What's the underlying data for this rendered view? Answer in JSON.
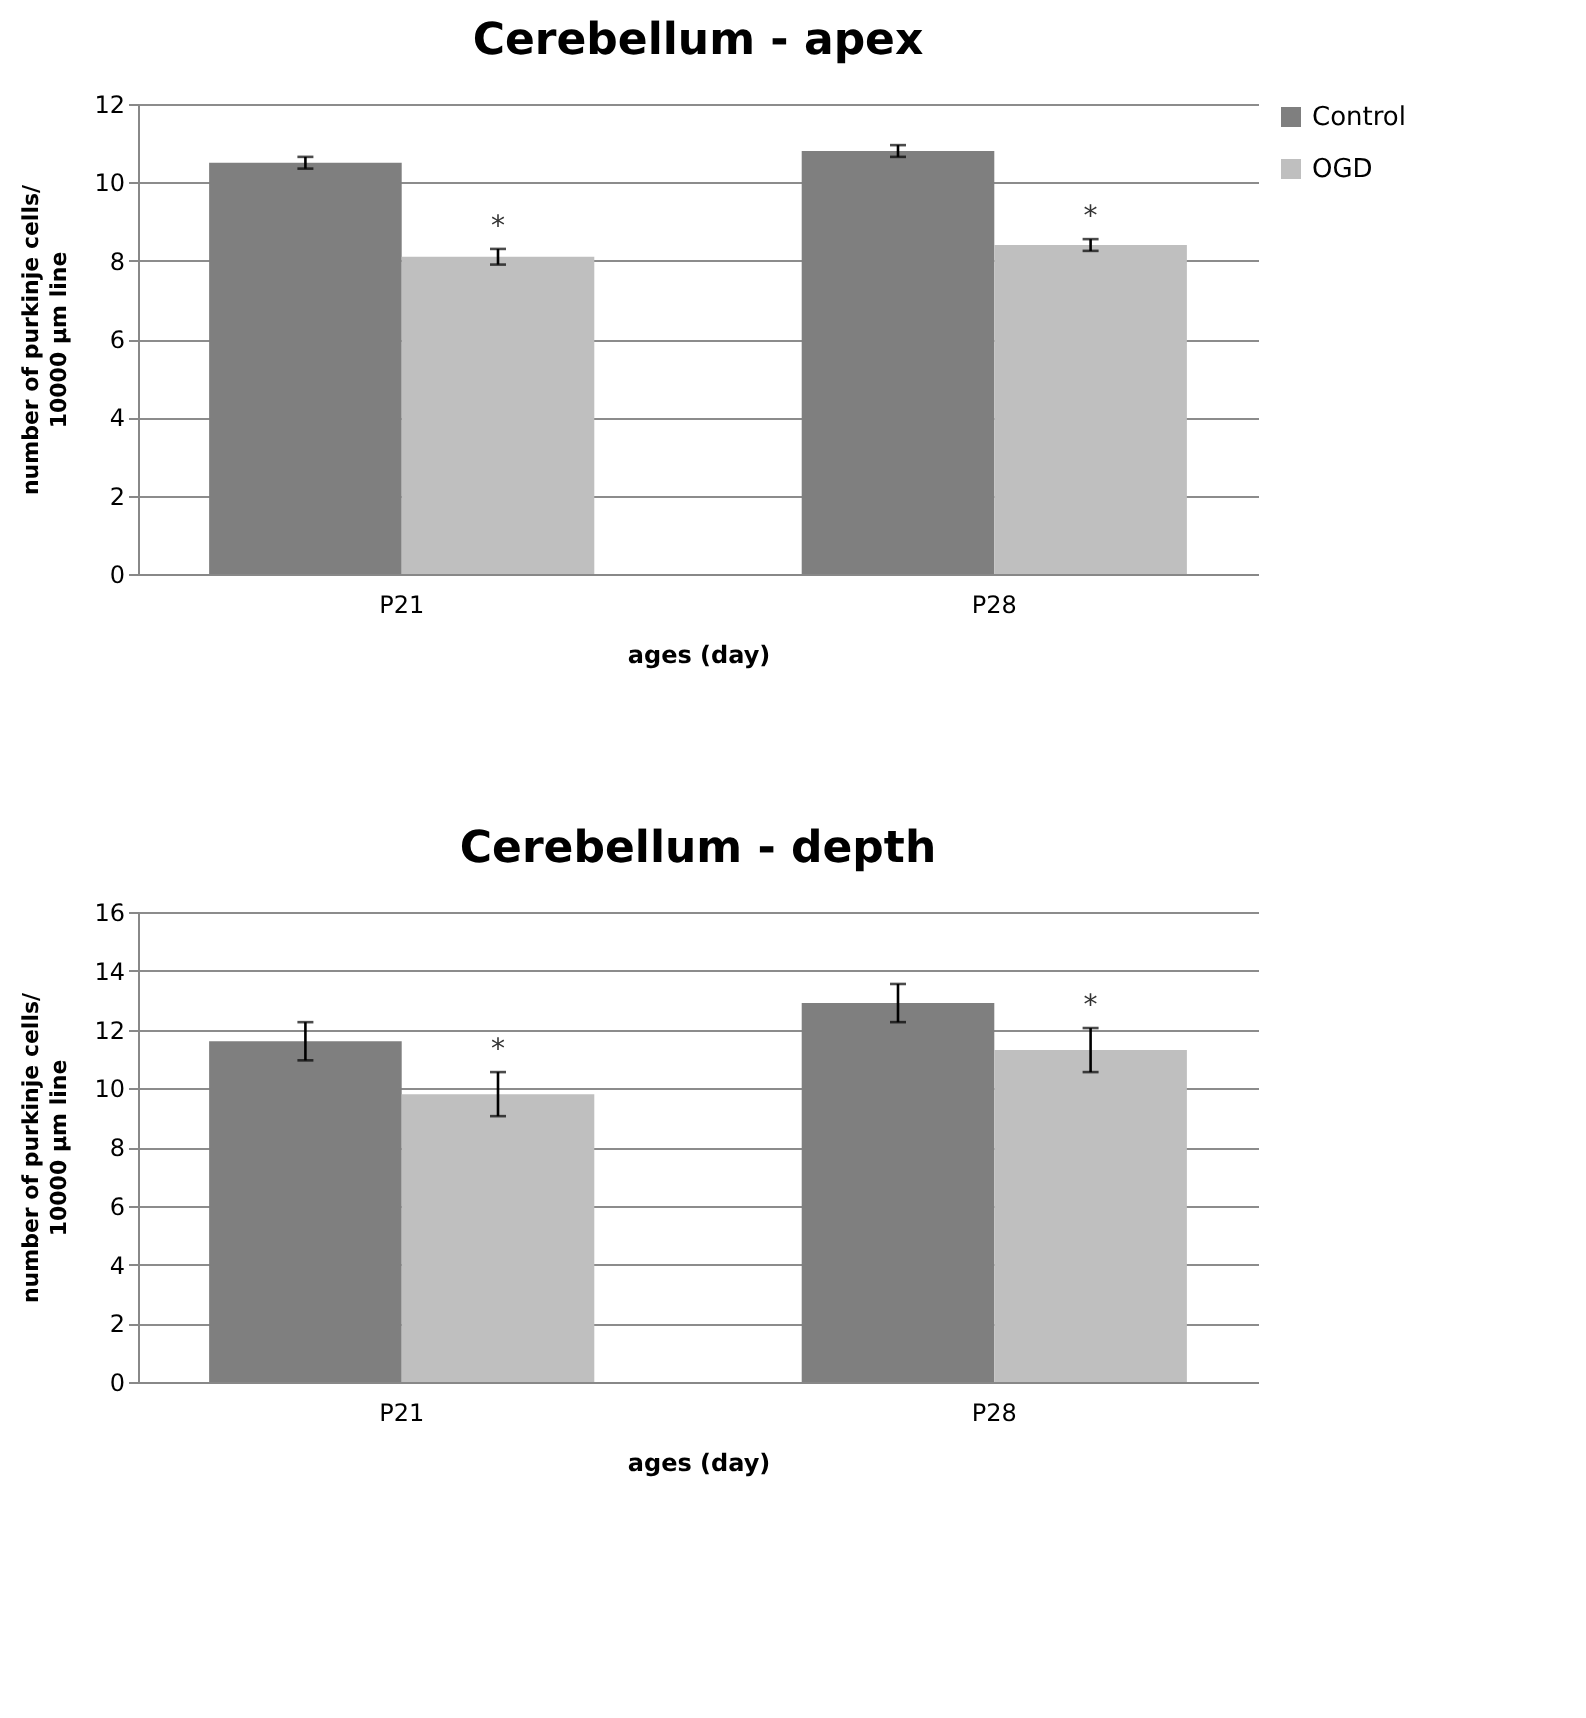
{
  "chart_data": [
    {
      "type": "bar",
      "title": "Cerebellum - apex",
      "xlabel": "ages (day)",
      "ylabel": "number of purkinje cells/\n10000 µm line",
      "categories": [
        "P21",
        "P28"
      ],
      "series": [
        {
          "name": "Control",
          "color": "#7f7f7f",
          "values": [
            10.5,
            10.8
          ],
          "errors": [
            0.15,
            0.15
          ]
        },
        {
          "name": "OGD",
          "color": "#bfbfbf",
          "values": [
            8.1,
            8.4
          ],
          "errors": [
            0.2,
            0.15
          ]
        }
      ],
      "annotations": [
        "*",
        "*"
      ],
      "ylim": [
        0,
        12
      ],
      "yticks": [
        0,
        2,
        4,
        6,
        8,
        10,
        12
      ],
      "grid": "y",
      "legend": "right"
    },
    {
      "type": "bar",
      "title": "Cerebellum - depth",
      "xlabel": "ages (day)",
      "ylabel": "number of purkinje cells/\n10000 µm line",
      "categories": [
        "P21",
        "P28"
      ],
      "series": [
        {
          "name": "Control",
          "color": "#7f7f7f",
          "values": [
            11.6,
            12.9
          ],
          "errors": [
            0.65,
            0.65
          ]
        },
        {
          "name": "OGD",
          "color": "#bfbfbf",
          "values": [
            9.8,
            11.3
          ],
          "errors": [
            0.75,
            0.75
          ]
        }
      ],
      "annotations": [
        "*",
        "*"
      ],
      "ylim": [
        0,
        16
      ],
      "yticks": [
        0,
        2,
        4,
        6,
        8,
        10,
        12,
        14,
        16
      ],
      "grid": "y",
      "legend": "right"
    }
  ]
}
